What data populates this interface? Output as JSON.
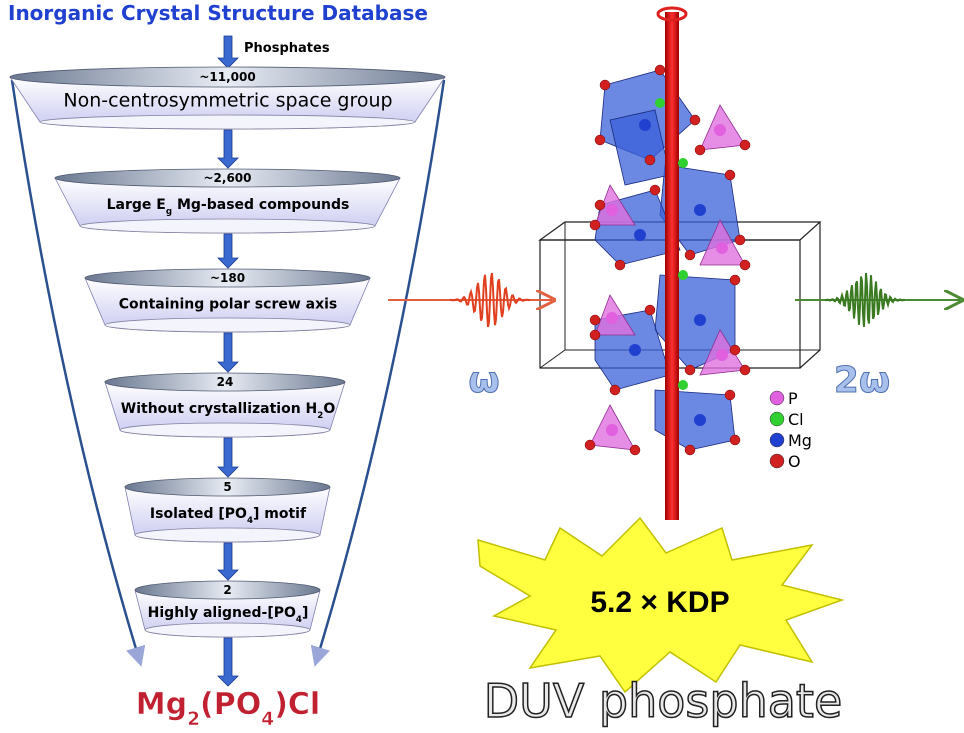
{
  "title": "Inorganic Crystal Structure Database",
  "source_label": "Phosphates",
  "stages": [
    {
      "count": "~11,000",
      "label": [
        "Non-centrosymmetric space group"
      ]
    },
    {
      "count": "~2,600",
      "label": [
        "Large E",
        "g",
        " Mg-based compounds"
      ]
    },
    {
      "count": "~180",
      "label": [
        "Containing polar screw axis"
      ]
    },
    {
      "count": "24",
      "label": [
        "Without crystallization H",
        "2",
        "O"
      ]
    },
    {
      "count": "5",
      "label": [
        "Isolated [PO",
        "4",
        "] motif"
      ]
    },
    {
      "count": "2",
      "label": [
        "Highly aligned-[PO",
        "4",
        "]"
      ]
    }
  ],
  "result": [
    "Mg",
    "2",
    "(PO",
    "4",
    ")Cl"
  ],
  "input_label": "ω",
  "output_label": "2ω",
  "legend": [
    {
      "label": "P",
      "color": "#e060e0"
    },
    {
      "label": "Cl",
      "color": "#30d030"
    },
    {
      "label": "Mg",
      "color": "#2040d0"
    },
    {
      "label": "O",
      "color": "#d02020"
    }
  ],
  "performance": "5.2 × KDP",
  "caption": "DUV phosphate"
}
